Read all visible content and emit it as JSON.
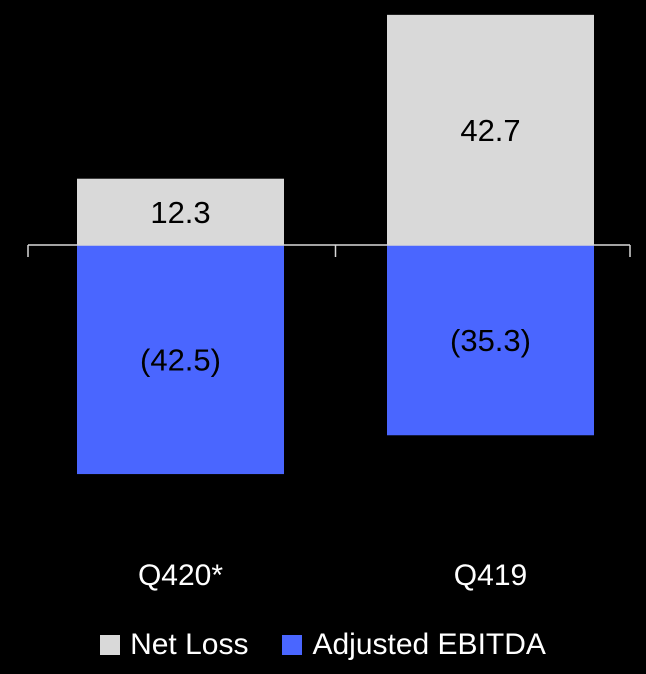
{
  "chart_data": {
    "type": "bar",
    "stacked": true,
    "categories": [
      "Q420*",
      "Q419"
    ],
    "series": [
      {
        "name": "Net Loss",
        "values": [
          12.3,
          42.7
        ],
        "labels": [
          "12.3",
          "42.7"
        ],
        "color": "#d9d9d9"
      },
      {
        "name": "Adjusted EBITDA",
        "values": [
          -42.5,
          -35.3
        ],
        "labels": [
          "(42.5)",
          "(35.3)"
        ],
        "color": "#4a66ff"
      }
    ],
    "ylim": [
      -48,
      46
    ],
    "grid": false,
    "legend_position": "bottom",
    "axis_color": "#d9d9d9",
    "background": "#000000"
  }
}
